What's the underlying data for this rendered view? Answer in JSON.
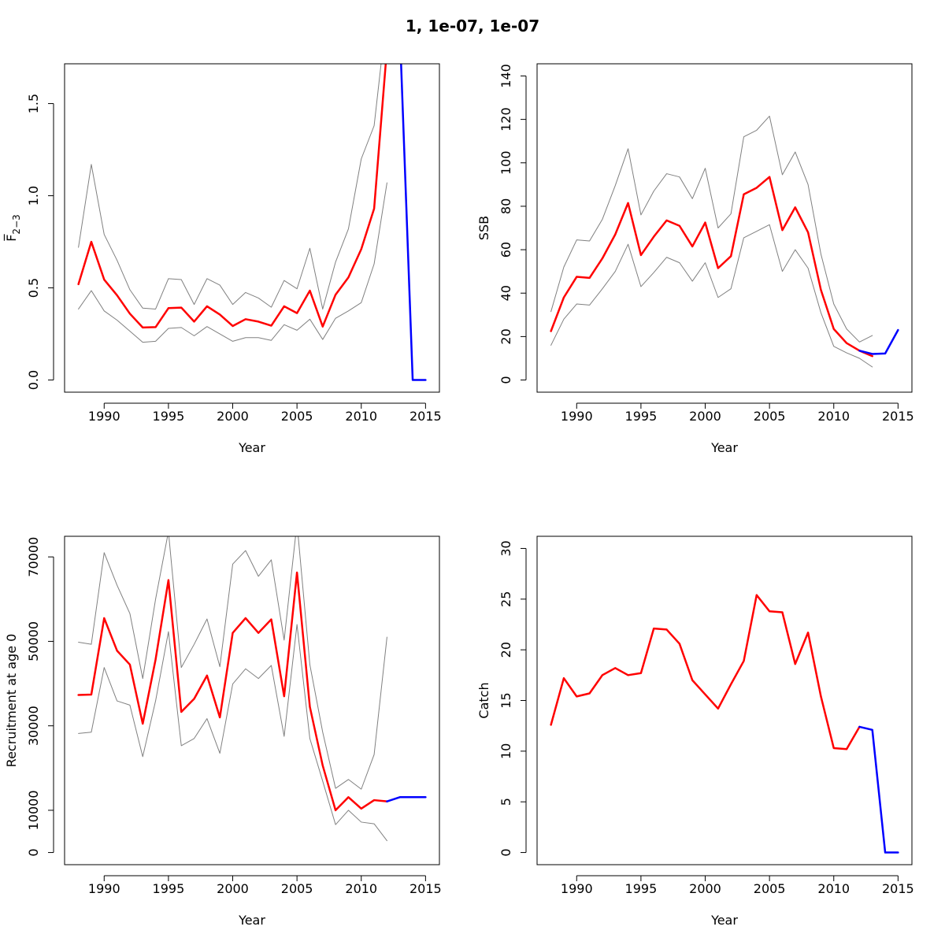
{
  "figure": {
    "title": "1, 1e-07, 1e-07"
  },
  "chart_data": [
    {
      "type": "line",
      "title": "",
      "xlabel": "Year",
      "ylabel": "F̅",
      "ylabel_sub": "2−3",
      "xlim": [
        1988,
        2015
      ],
      "ylim": [
        0,
        1.65
      ],
      "xticks": [
        1990,
        1995,
        2000,
        2005,
        2010,
        2015
      ],
      "yticks": [
        0,
        0.5,
        1,
        1.5
      ],
      "ytick_labels": [
        "0.0",
        "0.5",
        "1.0",
        "1.5"
      ],
      "series": [
        {
          "color": "#808080",
          "width": 1,
          "x": [
            1988,
            1989,
            1990,
            1991,
            1992,
            1993,
            1994,
            1995,
            1996,
            1997,
            1998,
            1999,
            2000,
            2001,
            2002,
            2003,
            2004,
            2005,
            2006,
            2007,
            2008,
            2009,
            2010,
            2011,
            2012
          ],
          "y": [
            0.72,
            1.17,
            0.79,
            0.65,
            0.49,
            0.39,
            0.385,
            0.55,
            0.545,
            0.41,
            0.55,
            0.515,
            0.41,
            0.475,
            0.445,
            0.395,
            0.54,
            0.495,
            0.715,
            0.385,
            0.64,
            0.82,
            1.2,
            1.38,
            2.0
          ]
        },
        {
          "color": "#808080",
          "width": 1,
          "x": [
            1988,
            1989,
            1990,
            1991,
            1992,
            1993,
            1994,
            1995,
            1996,
            1997,
            1998,
            1999,
            2000,
            2001,
            2002,
            2003,
            2004,
            2005,
            2006,
            2007,
            2008,
            2009,
            2010,
            2011,
            2012
          ],
          "y": [
            0.385,
            0.485,
            0.375,
            0.325,
            0.265,
            0.205,
            0.21,
            0.28,
            0.285,
            0.24,
            0.29,
            0.25,
            0.21,
            0.23,
            0.23,
            0.215,
            0.3,
            0.27,
            0.33,
            0.22,
            0.335,
            0.375,
            0.42,
            0.63,
            1.07
          ]
        },
        {
          "color": "#ff0000",
          "width": 2.5,
          "x": [
            1988,
            1989,
            1990,
            1991,
            1992,
            1993,
            1994,
            1995,
            1996,
            1997,
            1998,
            1999,
            2000,
            2001,
            2002,
            2003,
            2004,
            2005,
            2006,
            2007,
            2008,
            2009,
            2010,
            2011,
            2012
          ],
          "y": [
            0.52,
            0.75,
            0.545,
            0.46,
            0.36,
            0.285,
            0.287,
            0.39,
            0.393,
            0.317,
            0.4,
            0.355,
            0.293,
            0.33,
            0.317,
            0.295,
            0.4,
            0.363,
            0.485,
            0.29,
            0.463,
            0.557,
            0.71,
            0.93,
            1.8
          ]
        },
        {
          "color": "#0000ff",
          "width": 2.5,
          "x": [
            2013,
            2014,
            2015
          ],
          "y": [
            1.9,
            0.0,
            0.0
          ]
        }
      ]
    },
    {
      "type": "line",
      "title": "",
      "xlabel": "Year",
      "ylabel": "SSB",
      "xlim": [
        1988,
        2015
      ],
      "ylim": [
        0,
        140
      ],
      "xticks": [
        1990,
        1995,
        2000,
        2005,
        2010,
        2015
      ],
      "yticks": [
        0,
        20,
        40,
        60,
        80,
        100,
        120,
        140
      ],
      "ytick_labels": [
        "0",
        "20",
        "40",
        "60",
        "80",
        "100",
        "120",
        "140"
      ],
      "series": [
        {
          "color": "#808080",
          "width": 1,
          "x": [
            1988,
            1989,
            1990,
            1991,
            1992,
            1993,
            1994,
            1995,
            1996,
            1997,
            1998,
            1999,
            2000,
            2001,
            2002,
            2003,
            2004,
            2005,
            2006,
            2007,
            2008,
            2009,
            2010,
            2011,
            2012,
            2013
          ],
          "y": [
            31.5,
            52,
            64.5,
            64,
            74,
            89.5,
            106.5,
            76,
            87,
            95,
            93.5,
            83.5,
            97.5,
            70,
            76.5,
            112,
            115,
            121.5,
            94.5,
            105,
            90,
            58,
            35,
            23.5,
            17.5,
            20.5
          ]
        },
        {
          "color": "#808080",
          "width": 1,
          "x": [
            1988,
            1989,
            1990,
            1991,
            1992,
            1993,
            1994,
            1995,
            1996,
            1997,
            1998,
            1999,
            2000,
            2001,
            2002,
            2003,
            2004,
            2005,
            2006,
            2007,
            2008,
            2009,
            2010,
            2011,
            2012,
            2013
          ],
          "y": [
            16,
            28,
            35,
            34.5,
            42,
            50,
            62.5,
            43,
            49.5,
            56.5,
            54,
            45.5,
            54,
            38,
            42,
            65.5,
            68.5,
            71.5,
            50,
            60,
            51.5,
            31,
            15.5,
            12.5,
            10,
            6
          ]
        },
        {
          "color": "#ff0000",
          "width": 2.5,
          "x": [
            1988,
            1989,
            1990,
            1991,
            1992,
            1993,
            1994,
            1995,
            1996,
            1997,
            1998,
            1999,
            2000,
            2001,
            2002,
            2003,
            2004,
            2005,
            2006,
            2007,
            2008,
            2009,
            2010,
            2011,
            2012,
            2013
          ],
          "y": [
            22.5,
            38,
            47.5,
            47,
            56,
            67,
            81.5,
            57.5,
            66,
            73.5,
            71,
            61.5,
            72.5,
            51.5,
            57,
            85.5,
            88.5,
            93.5,
            69,
            79.5,
            68,
            41.5,
            23.5,
            17,
            13.5,
            11
          ]
        },
        {
          "color": "#0000ff",
          "width": 2.5,
          "x": [
            2012,
            2013,
            2014,
            2015
          ],
          "y": [
            13.5,
            12,
            12.2,
            23
          ]
        }
      ]
    },
    {
      "type": "line",
      "title": "",
      "xlabel": "Year",
      "ylabel": "Recruitment at age 0",
      "xlim": [
        1988,
        2015
      ],
      "ylim": [
        0,
        72000
      ],
      "xticks": [
        1990,
        1995,
        2000,
        2005,
        2010,
        2015
      ],
      "yticks": [
        0,
        10000,
        30000,
        50000,
        70000
      ],
      "ytick_labels": [
        "0",
        "10000",
        "30000",
        "50000",
        "70000"
      ],
      "series": [
        {
          "color": "#808080",
          "width": 1,
          "x": [
            1988,
            1989,
            1990,
            1991,
            1992,
            1993,
            1994,
            1995,
            1996,
            1997,
            1998,
            1999,
            2000,
            2001,
            2002,
            2003,
            2004,
            2005,
            2006,
            2007,
            2008,
            2009,
            2010,
            2011,
            2012
          ],
          "y": [
            49800,
            49300,
            71000,
            63300,
            56600,
            41200,
            60000,
            76000,
            43800,
            49300,
            55300,
            44000,
            68300,
            71500,
            65400,
            69300,
            50300,
            78000,
            44500,
            28500,
            15200,
            17300,
            15000,
            23200,
            51000
          ]
        },
        {
          "color": "#808080",
          "width": 1,
          "x": [
            1988,
            1989,
            1990,
            1991,
            1992,
            1993,
            1994,
            1995,
            1996,
            1997,
            1998,
            1999,
            2000,
            2001,
            2002,
            2003,
            2004,
            2005,
            2006,
            2007,
            2008,
            2009,
            2010,
            2011,
            2012
          ],
          "y": [
            28200,
            28500,
            43800,
            35900,
            34900,
            22700,
            35900,
            52300,
            25300,
            27000,
            31700,
            23500,
            39900,
            43500,
            41200,
            44300,
            27500,
            54000,
            27000,
            16900,
            6600,
            10000,
            7200,
            6800,
            2800
          ]
        },
        {
          "color": "#ff0000",
          "width": 2.5,
          "x": [
            1988,
            1989,
            1990,
            1991,
            1992,
            1993,
            1994,
            1995,
            1996,
            1997,
            1998,
            1999,
            2000,
            2001,
            2002,
            2003,
            2004,
            2005,
            2006,
            2007,
            2008,
            2009,
            2010,
            2011,
            2012
          ],
          "y": [
            37300,
            37400,
            55500,
            47800,
            44500,
            30500,
            45700,
            64500,
            33300,
            36400,
            41900,
            32000,
            52000,
            55500,
            52000,
            55200,
            37000,
            66300,
            34500,
            20600,
            10000,
            13100,
            10400,
            12400,
            12100
          ]
        },
        {
          "color": "#0000ff",
          "width": 2.5,
          "x": [
            2012,
            2013,
            2014,
            2015
          ],
          "y": [
            12100,
            13100,
            13100,
            13100
          ]
        }
      ]
    },
    {
      "type": "line",
      "title": "",
      "xlabel": "Year",
      "ylabel": "Catch",
      "xlim": [
        1988,
        2015
      ],
      "ylim": [
        0,
        30
      ],
      "xticks": [
        1990,
        1995,
        2000,
        2005,
        2010,
        2015
      ],
      "yticks": [
        0,
        5,
        10,
        15,
        20,
        25,
        30
      ],
      "ytick_labels": [
        "0",
        "5",
        "10",
        "15",
        "20",
        "25",
        "30"
      ],
      "series": [
        {
          "color": "#ff0000",
          "width": 2.5,
          "x": [
            1988,
            1989,
            1990,
            1991,
            1992,
            1993,
            1994,
            1995,
            1996,
            1997,
            1998,
            1999,
            2000,
            2001,
            2002,
            2003,
            2004,
            2005,
            2006,
            2007,
            2008,
            2009,
            2010,
            2011,
            2012
          ],
          "y": [
            12.6,
            17.2,
            15.4,
            15.7,
            17.5,
            18.2,
            17.5,
            17.7,
            22.1,
            22,
            20.6,
            17,
            15.6,
            14.2,
            16.6,
            18.9,
            25.4,
            23.8,
            23.7,
            18.6,
            21.7,
            15.4,
            10.3,
            10.2,
            12.4
          ]
        },
        {
          "color": "#0000ff",
          "width": 2.5,
          "x": [
            2012,
            2013,
            2014,
            2015
          ],
          "y": [
            12.4,
            12.1,
            0.0,
            0.0
          ]
        }
      ]
    }
  ]
}
